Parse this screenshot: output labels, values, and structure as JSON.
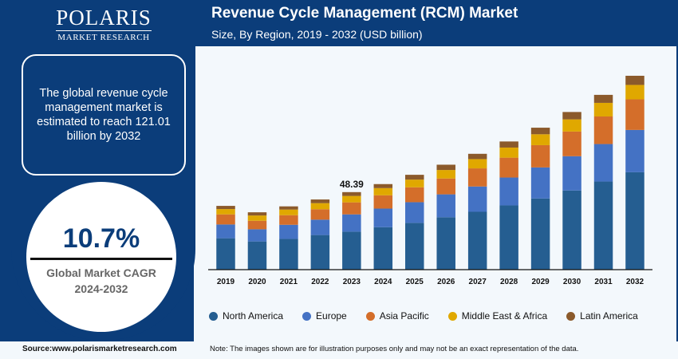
{
  "brand": {
    "name": "POLARIS",
    "tagline": "MARKET RESEARCH"
  },
  "header": {
    "title": "Revenue Cycle Management (RCM) Market",
    "subtitle": "Size, By Region, 2019 - 2032 (USD billion)"
  },
  "info": {
    "text": "The global revenue cycle management market is estimated to reach 121.01 billion by 2032"
  },
  "cagr": {
    "value": "10.7%",
    "label_line1": "Global Market CAGR",
    "label_line2": "2024-2032"
  },
  "footer": {
    "source": "Source:www.polarismarketresearch.com",
    "note": "Note: The images shown are for illustration purposes only and may not be an exact representation of the data."
  },
  "chart_data": {
    "type": "bar",
    "stacked": true,
    "categories": [
      "2019",
      "2020",
      "2021",
      "2022",
      "2023",
      "2024",
      "2025",
      "2026",
      "2027",
      "2028",
      "2029",
      "2030",
      "2031",
      "2032"
    ],
    "series": [
      {
        "name": "North America",
        "color": "#255e91",
        "values": [
          19.6,
          17.6,
          19.2,
          21.6,
          23.7,
          26.5,
          29.2,
          32.7,
          36.1,
          40.1,
          44.4,
          49.4,
          55.0,
          60.8
        ]
      },
      {
        "name": "Europe",
        "color": "#4472c4",
        "values": [
          8.6,
          7.6,
          8.8,
          9.6,
          10.8,
          11.6,
          12.9,
          14.3,
          15.8,
          17.4,
          19.4,
          21.4,
          23.4,
          26.4
        ]
      },
      {
        "name": "Asia Pacific",
        "color": "#d46e2a",
        "values": [
          6.3,
          5.3,
          6.0,
          6.5,
          7.5,
          8.3,
          9.3,
          9.9,
          11.3,
          12.4,
          13.9,
          15.4,
          17.2,
          19.1
        ]
      },
      {
        "name": "Middle East & Africa",
        "color": "#e0a800",
        "values": [
          3.3,
          3.3,
          3.5,
          3.8,
          4.0,
          4.5,
          4.8,
          5.3,
          5.8,
          6.3,
          6.8,
          7.6,
          8.5,
          9.0
        ]
      },
      {
        "name": "Latin America",
        "color": "#8b5a2b",
        "values": [
          2.0,
          2.0,
          2.0,
          2.3,
          2.39,
          2.5,
          3.0,
          3.3,
          3.3,
          3.8,
          4.1,
          4.6,
          5.0,
          5.71
        ]
      }
    ],
    "annotations": [
      {
        "category": "2023",
        "text": "48.39"
      }
    ],
    "ylim": [
      0,
      125
    ],
    "grid": false,
    "legend": "bottom"
  }
}
